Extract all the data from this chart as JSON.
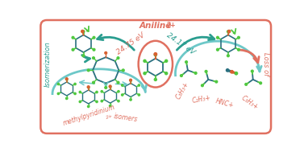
{
  "title": "Aniline",
  "title_charge": "2+",
  "background": "#ffffff",
  "border_color": "#e07060",
  "teal": "#2a9d8f",
  "salmon": "#e07060",
  "light_teal": "#6dc8c8",
  "energy_left": "24.75 eV",
  "energy_right": "24.17 eV",
  "label_isomerization": "Isomerization",
  "label_loss": "Loss of",
  "label_methylpyridinium": "methylpyridinium",
  "label_methylpyridinium_charge": "2+",
  "label_isomers": "isomers",
  "label_c3h3_left": "C₃H₃",
  "label_c2h3": "C₂H₃",
  "label_hnc": "HNC",
  "label_c3h3_right": "C₃H₃",
  "label_plus": "+",
  "atom_dark": "#2a7080",
  "atom_green": "#50c840",
  "atom_red": "#e07060",
  "atom_orange": "#d86030"
}
